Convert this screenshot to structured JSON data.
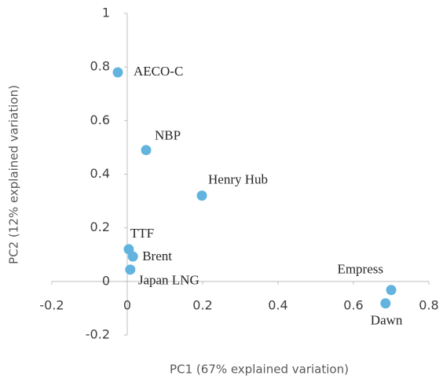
{
  "chart_data": {
    "type": "scatter",
    "x_label": "PC1 (67% explained variation)",
    "y_label": "PC2 (12% explained variation)",
    "labels": [
      "AECO-C",
      "NBP",
      "Henry Hub",
      "TTF",
      "Brent",
      "Japan LNG",
      "Empress",
      "Dawn"
    ],
    "x": [
      -0.025,
      0.05,
      0.198,
      0.004,
      0.015,
      0.008,
      0.7,
      0.685
    ],
    "values": [
      0.78,
      0.49,
      0.32,
      0.12,
      0.093,
      0.044,
      -0.032,
      -0.082
    ],
    "color": "#62b4de",
    "xlim": [
      -0.2,
      0.8
    ],
    "xticks": [
      -0.2,
      0,
      0.2,
      0.4,
      0.6,
      0.8
    ],
    "ylim": [
      -0.2,
      1
    ],
    "yticks": [
      -0.2,
      0,
      0.2,
      0.4,
      0.6,
      0.8,
      1
    ]
  }
}
